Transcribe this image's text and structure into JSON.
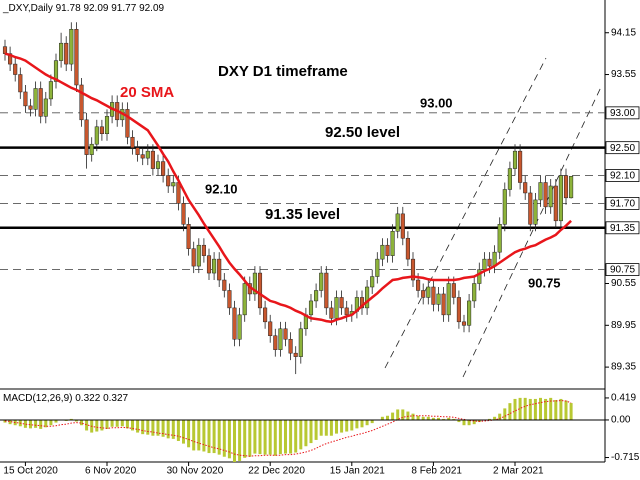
{
  "chart_data": {
    "type": "candlestick",
    "symbol": "_DXY,Daily",
    "categories": [
      null,
      null,
      null,
      null,
      "15 Oct 2020",
      null,
      null,
      null,
      null,
      null,
      null,
      null,
      null,
      null,
      null,
      null,
      null,
      null,
      null,
      null,
      "6 Nov 2020",
      null,
      null,
      null,
      null,
      null,
      null,
      null,
      null,
      null,
      null,
      null,
      null,
      null,
      null,
      null,
      "30 Nov 2020",
      null,
      null,
      null,
      null,
      null,
      null,
      null,
      null,
      null,
      null,
      null,
      null,
      null,
      null,
      null,
      "22 Dec 2020",
      null,
      null,
      null,
      null,
      null,
      null,
      null,
      null,
      null,
      null,
      null,
      null,
      null,
      null,
      null,
      "15 Jan 2021",
      null,
      null,
      null,
      null,
      null,
      null,
      null,
      null,
      null,
      null,
      null,
      null,
      null,
      null,
      null,
      "8 Feb 2021",
      null,
      null,
      null,
      null,
      null,
      null,
      null,
      null,
      null,
      null,
      null,
      null,
      null,
      null,
      null,
      "2 Mar 2021",
      null,
      null,
      null,
      null,
      null,
      null,
      null,
      null,
      null,
      null,
      null
    ],
    "ohlc": [
      [
        93.95,
        94.05,
        93.75,
        93.85
      ],
      [
        93.85,
        93.95,
        93.6,
        93.7
      ],
      [
        93.7,
        93.8,
        93.45,
        93.55
      ],
      [
        93.55,
        93.65,
        93.2,
        93.3
      ],
      [
        93.3,
        93.4,
        93.0,
        93.1
      ],
      [
        93.1,
        93.2,
        92.95,
        93.05
      ],
      [
        93.05,
        93.45,
        92.95,
        93.35
      ],
      [
        93.35,
        93.45,
        92.85,
        92.95
      ],
      [
        92.95,
        93.3,
        92.85,
        93.2
      ],
      [
        93.2,
        93.55,
        93.1,
        93.45
      ],
      [
        93.45,
        93.85,
        93.35,
        93.75
      ],
      [
        93.75,
        94.15,
        93.65,
        94.0
      ],
      [
        94.0,
        94.1,
        93.6,
        93.7
      ],
      [
        93.7,
        94.3,
        93.6,
        94.2
      ],
      [
        94.2,
        94.3,
        93.3,
        93.4
      ],
      [
        93.4,
        93.5,
        92.8,
        92.9
      ],
      [
        92.9,
        93.0,
        92.2,
        92.4
      ],
      [
        92.4,
        92.65,
        92.3,
        92.55
      ],
      [
        92.55,
        92.9,
        92.45,
        92.8
      ],
      [
        92.8,
        92.9,
        92.6,
        92.7
      ],
      [
        92.7,
        93.05,
        92.6,
        92.95
      ],
      [
        92.95,
        93.25,
        92.85,
        93.15
      ],
      [
        93.15,
        93.25,
        92.8,
        92.9
      ],
      [
        92.9,
        93.15,
        92.8,
        93.05
      ],
      [
        93.05,
        93.15,
        92.55,
        92.65
      ],
      [
        92.65,
        92.75,
        92.4,
        92.5
      ],
      [
        92.5,
        92.6,
        92.3,
        92.4
      ],
      [
        92.4,
        92.5,
        92.25,
        92.35
      ],
      [
        92.35,
        92.55,
        92.25,
        92.45
      ],
      [
        92.45,
        92.55,
        92.1,
        92.2
      ],
      [
        92.2,
        92.4,
        92.1,
        92.3
      ],
      [
        92.3,
        92.4,
        92.0,
        92.1
      ],
      [
        92.1,
        92.2,
        91.85,
        91.95
      ],
      [
        91.95,
        92.1,
        91.85,
        92.0
      ],
      [
        92.0,
        92.1,
        91.6,
        91.7
      ],
      [
        91.7,
        91.8,
        91.3,
        91.4
      ],
      [
        91.4,
        91.5,
        90.95,
        91.05
      ],
      [
        91.05,
        91.15,
        90.7,
        90.8
      ],
      [
        90.8,
        91.2,
        90.7,
        91.1
      ],
      [
        91.1,
        91.2,
        90.85,
        90.95
      ],
      [
        90.95,
        91.05,
        90.6,
        90.7
      ],
      [
        90.7,
        91.0,
        90.6,
        90.9
      ],
      [
        90.9,
        91.0,
        90.5,
        90.6
      ],
      [
        90.6,
        90.7,
        90.35,
        90.45
      ],
      [
        90.45,
        90.55,
        90.1,
        90.2
      ],
      [
        90.2,
        90.3,
        89.65,
        89.75
      ],
      [
        89.75,
        90.2,
        89.65,
        90.1
      ],
      [
        90.1,
        90.65,
        90.0,
        90.55
      ],
      [
        90.55,
        90.65,
        90.3,
        90.4
      ],
      [
        90.4,
        90.8,
        90.3,
        90.7
      ],
      [
        90.7,
        90.8,
        90.1,
        90.2
      ],
      [
        90.2,
        90.3,
        89.9,
        90.0
      ],
      [
        90.0,
        90.1,
        89.7,
        89.8
      ],
      [
        89.8,
        89.9,
        89.5,
        89.6
      ],
      [
        89.6,
        90.0,
        89.5,
        89.9
      ],
      [
        89.9,
        90.0,
        89.65,
        89.75
      ],
      [
        89.75,
        89.85,
        89.45,
        89.55
      ],
      [
        89.55,
        89.65,
        89.25,
        89.5
      ],
      [
        89.5,
        90.0,
        89.4,
        89.9
      ],
      [
        89.9,
        90.2,
        89.8,
        90.1
      ],
      [
        90.1,
        90.4,
        90.0,
        90.3
      ],
      [
        90.3,
        90.55,
        90.2,
        90.45
      ],
      [
        90.45,
        90.8,
        90.35,
        90.7
      ],
      [
        90.7,
        90.8,
        90.1,
        90.2
      ],
      [
        90.2,
        90.3,
        89.95,
        90.05
      ],
      [
        90.05,
        90.45,
        89.95,
        90.35
      ],
      [
        90.35,
        90.45,
        90.1,
        90.2
      ],
      [
        90.2,
        90.3,
        90.0,
        90.1
      ],
      [
        90.1,
        90.25,
        90.0,
        90.15
      ],
      [
        90.15,
        90.45,
        90.05,
        90.35
      ],
      [
        90.35,
        90.45,
        90.1,
        90.2
      ],
      [
        90.2,
        90.6,
        90.1,
        90.5
      ],
      [
        90.5,
        90.75,
        90.4,
        90.65
      ],
      [
        90.65,
        91.0,
        90.55,
        90.9
      ],
      [
        90.9,
        91.2,
        90.8,
        91.1
      ],
      [
        91.1,
        91.2,
        90.85,
        90.95
      ],
      [
        90.95,
        91.4,
        90.85,
        91.3
      ],
      [
        91.3,
        91.65,
        91.2,
        91.55
      ],
      [
        91.55,
        91.65,
        91.1,
        91.2
      ],
      [
        91.2,
        91.3,
        90.8,
        90.9
      ],
      [
        90.9,
        91.0,
        90.5,
        90.6
      ],
      [
        90.6,
        90.7,
        90.35,
        90.45
      ],
      [
        90.45,
        90.55,
        90.25,
        90.35
      ],
      [
        90.35,
        90.6,
        90.25,
        90.5
      ],
      [
        90.5,
        90.6,
        90.15,
        90.25
      ],
      [
        90.25,
        90.5,
        90.15,
        90.4
      ],
      [
        90.4,
        90.5,
        90.0,
        90.1
      ],
      [
        90.1,
        90.65,
        90.0,
        90.55
      ],
      [
        90.55,
        90.65,
        90.25,
        90.35
      ],
      [
        90.35,
        90.45,
        89.9,
        90.0
      ],
      [
        90.0,
        90.1,
        89.85,
        89.95
      ],
      [
        89.95,
        90.4,
        89.85,
        90.3
      ],
      [
        90.3,
        90.65,
        90.2,
        90.55
      ],
      [
        90.55,
        90.85,
        90.45,
        90.75
      ],
      [
        90.75,
        91.0,
        90.65,
        90.9
      ],
      [
        90.9,
        91.0,
        90.7,
        90.8
      ],
      [
        90.8,
        91.1,
        90.7,
        91.0
      ],
      [
        91.0,
        91.5,
        90.9,
        91.4
      ],
      [
        91.4,
        92.0,
        91.3,
        91.9
      ],
      [
        91.9,
        92.3,
        91.8,
        92.2
      ],
      [
        92.2,
        92.55,
        92.1,
        92.45
      ],
      [
        92.45,
        92.55,
        91.9,
        92.0
      ],
      [
        92.0,
        92.1,
        91.75,
        91.85
      ],
      [
        91.85,
        91.95,
        91.3,
        91.4
      ],
      [
        91.4,
        91.85,
        91.3,
        91.75
      ],
      [
        91.75,
        92.1,
        91.65,
        92.0
      ],
      [
        92.0,
        92.1,
        91.55,
        91.65
      ],
      [
        91.65,
        92.05,
        91.55,
        91.95
      ],
      [
        91.95,
        92.05,
        91.35,
        91.45
      ],
      [
        91.45,
        92.2,
        91.35,
        92.1
      ],
      [
        92.1,
        92.2,
        91.68,
        91.78
      ],
      [
        91.78,
        92.09,
        91.77,
        92.09
      ]
    ],
    "bull_color": "#8db33a",
    "bear_color": "#c8572e",
    "sma": {
      "name": "20 SMA",
      "color": "#e8161b",
      "values": [
        93.85,
        93.83,
        93.8,
        93.78,
        93.75,
        93.7,
        93.65,
        93.6,
        93.55,
        93.51,
        93.48,
        93.44,
        93.4,
        93.36,
        93.33,
        93.29,
        93.25,
        93.21,
        93.18,
        93.14,
        93.1,
        93.06,
        93.03,
        92.99,
        92.95,
        92.9,
        92.85,
        92.8,
        92.75,
        92.64,
        92.53,
        92.41,
        92.3,
        92.16,
        92.03,
        91.89,
        91.75,
        91.64,
        91.53,
        91.41,
        91.3,
        91.19,
        91.08,
        90.96,
        90.85,
        90.76,
        90.68,
        90.59,
        90.5,
        90.45,
        90.4,
        90.35,
        90.3,
        90.28,
        90.25,
        90.23,
        90.2,
        90.16,
        90.13,
        90.09,
        90.05,
        90.04,
        90.03,
        90.01,
        90.0,
        90.03,
        90.05,
        90.08,
        90.1,
        90.16,
        90.23,
        90.29,
        90.35,
        90.41,
        90.48,
        90.54,
        90.6,
        90.61,
        90.63,
        90.64,
        90.65,
        90.64,
        90.63,
        90.61,
        90.6,
        90.6,
        90.6,
        90.6,
        90.6,
        90.61,
        90.63,
        90.64,
        90.65,
        90.69,
        90.73,
        90.76,
        90.8,
        90.85,
        90.9,
        90.95,
        91.0,
        91.03,
        91.05,
        91.08,
        91.1,
        91.14,
        91.18,
        91.21,
        91.25,
        91.32,
        91.38,
        91.45
      ]
    },
    "ylim": [
      89.05,
      94.62
    ],
    "yticks": [
      94.15,
      93.55,
      90.55,
      89.95,
      89.35
    ],
    "levels": [
      {
        "value": 93,
        "label": "93.00",
        "style": "dashed"
      },
      {
        "value": 92.5,
        "label": "92.50",
        "style": "solid"
      },
      {
        "value": 92.1,
        "label": "92.10",
        "style": "dashed"
      },
      {
        "value": 91.7,
        "label": "91.70",
        "style": "dashed"
      },
      {
        "value": 91.35,
        "label": "91.35",
        "style": "solid"
      },
      {
        "value": 90.75,
        "label": "90.75",
        "style": "dashed"
      }
    ],
    "annotations": [
      "DXY D1 timeframe",
      "20 SMA",
      "92.50 level",
      "91.35 level"
    ],
    "macd": {
      "name": "MACD(12,26,9)",
      "color": "#b8c832",
      "signal_color": "#e8161b",
      "values": [
        -0.05,
        -0.08,
        -0.1,
        -0.12,
        -0.15,
        -0.16,
        -0.15,
        -0.17,
        -0.14,
        -0.1,
        -0.05,
        0.0,
        -0.02,
        0.02,
        -0.03,
        -0.1,
        -0.2,
        -0.24,
        -0.22,
        -0.2,
        -0.17,
        -0.13,
        -0.13,
        -0.12,
        -0.16,
        -0.2,
        -0.24,
        -0.27,
        -0.28,
        -0.3,
        -0.3,
        -0.32,
        -0.35,
        -0.36,
        -0.4,
        -0.45,
        -0.52,
        -0.58,
        -0.58,
        -0.6,
        -0.63,
        -0.63,
        -0.66,
        -0.7,
        -0.73,
        -0.8,
        -0.78,
        -0.72,
        -0.7,
        -0.64,
        -0.65,
        -0.66,
        -0.66,
        -0.68,
        -0.65,
        -0.64,
        -0.64,
        -0.62,
        -0.56,
        -0.5,
        -0.44,
        -0.38,
        -0.3,
        -0.3,
        -0.3,
        -0.26,
        -0.24,
        -0.22,
        -0.2,
        -0.16,
        -0.14,
        -0.1,
        -0.06,
        0.0,
        0.06,
        0.08,
        0.14,
        0.2,
        0.2,
        0.16,
        0.12,
        0.08,
        0.06,
        0.06,
        0.04,
        0.04,
        0.02,
        0.04,
        0.02,
        -0.04,
        -0.1,
        -0.1,
        -0.08,
        -0.04,
        0.0,
        0.02,
        0.06,
        0.12,
        0.22,
        0.32,
        0.4,
        0.42,
        0.42,
        0.4,
        0.4,
        0.42,
        0.4,
        0.42,
        0.38,
        0.4,
        0.37,
        0.322
      ],
      "signal": [
        -0.02,
        -0.03,
        -0.05,
        -0.06,
        -0.08,
        -0.09,
        -0.1,
        -0.11,
        -0.12,
        -0.12,
        -0.11,
        -0.09,
        -0.08,
        -0.06,
        -0.05,
        -0.06,
        -0.09,
        -0.12,
        -0.14,
        -0.15,
        -0.16,
        -0.15,
        -0.15,
        -0.14,
        -0.15,
        -0.16,
        -0.18,
        -0.2,
        -0.22,
        -0.23,
        -0.25,
        -0.26,
        -0.28,
        -0.29,
        -0.31,
        -0.34,
        -0.37,
        -0.41,
        -0.44,
        -0.47,
        -0.5,
        -0.53,
        -0.55,
        -0.58,
        -0.61,
        -0.65,
        -0.67,
        -0.68,
        -0.69,
        -0.68,
        -0.68,
        -0.67,
        -0.67,
        -0.67,
        -0.67,
        -0.66,
        -0.66,
        -0.65,
        -0.63,
        -0.61,
        -0.58,
        -0.54,
        -0.49,
        -0.45,
        -0.42,
        -0.39,
        -0.36,
        -0.33,
        -0.31,
        -0.28,
        -0.26,
        -0.23,
        -0.2,
        -0.16,
        -0.12,
        -0.08,
        -0.04,
        0.01,
        0.05,
        0.07,
        0.08,
        0.08,
        0.08,
        0.08,
        0.07,
        0.07,
        0.06,
        0.06,
        0.05,
        0.03,
        0.01,
        -0.01,
        -0.02,
        -0.03,
        -0.02,
        -0.01,
        0.0,
        0.03,
        0.07,
        0.12,
        0.17,
        0.22,
        0.26,
        0.29,
        0.31,
        0.33,
        0.35,
        0.36,
        0.36,
        0.37,
        0.36,
        0.327
      ],
      "ylim": [
        -0.8,
        0.57
      ],
      "yticks": [
        0.419,
        {
          "value": 0,
          "label": "0.00"
        },
        -0.715
      ]
    }
  }
}
